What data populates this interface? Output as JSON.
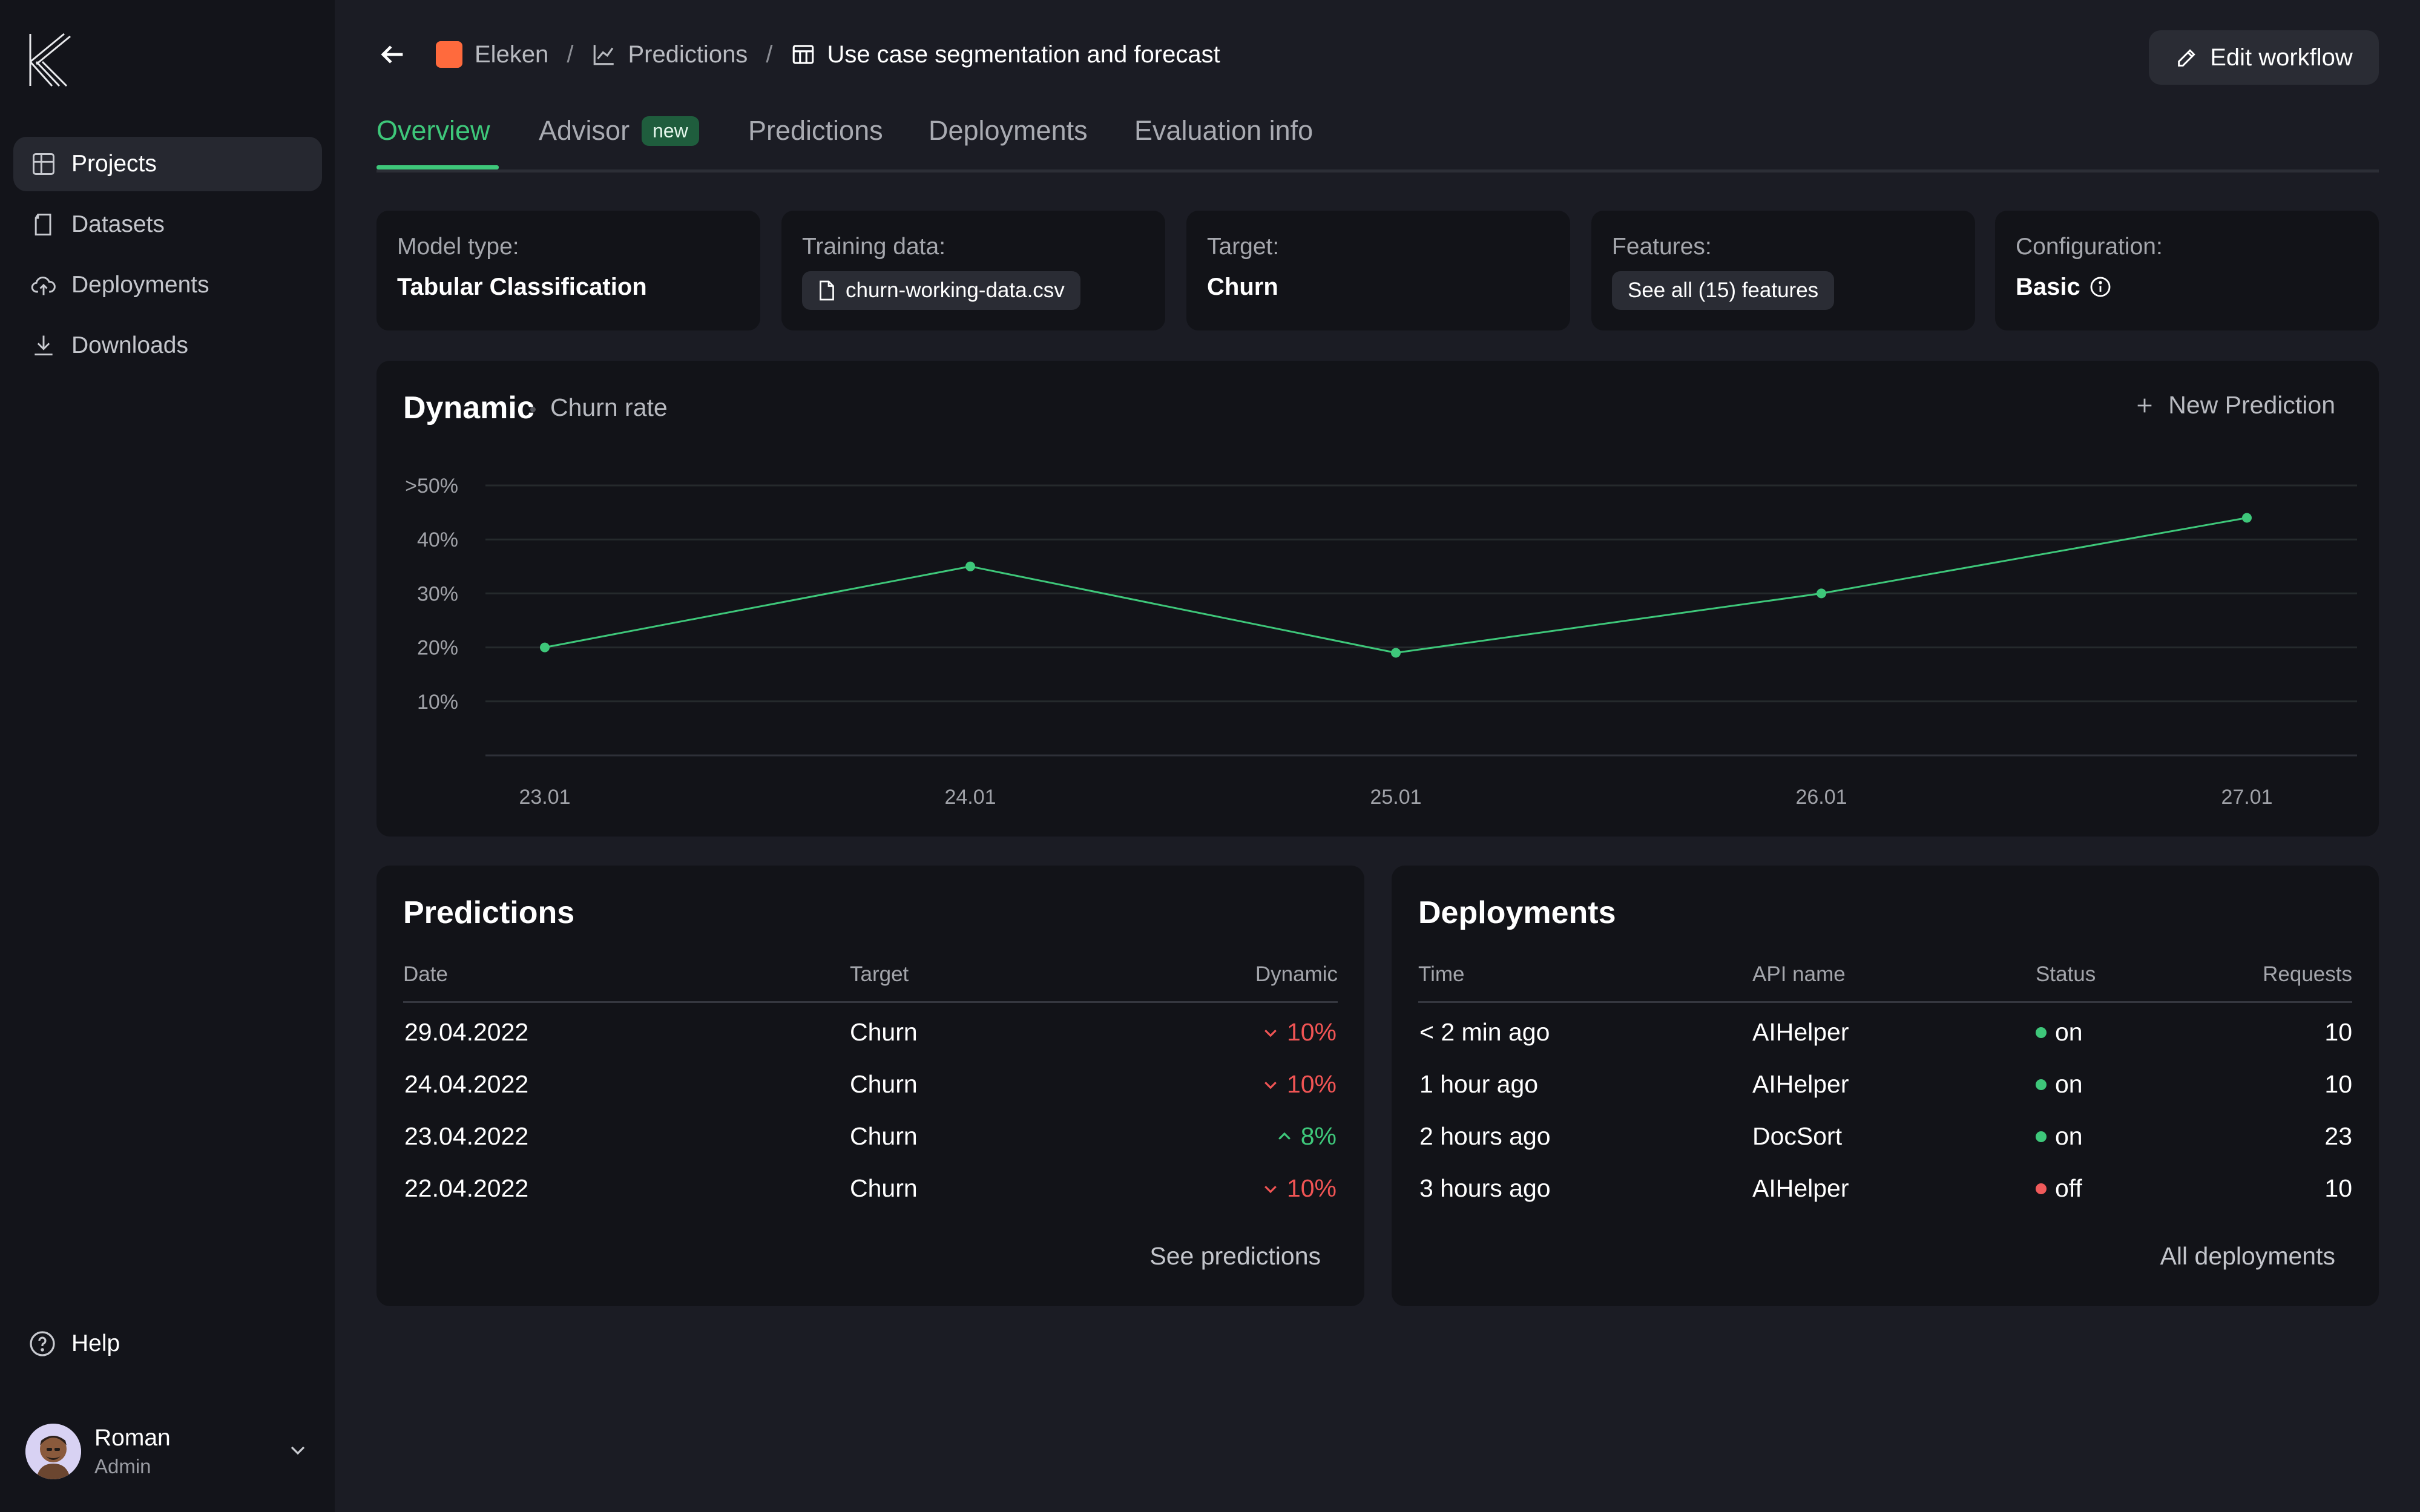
{
  "sidebar": {
    "items": [
      {
        "label": "Projects",
        "icon": "grid-icon",
        "active": true
      },
      {
        "label": "Datasets",
        "icon": "file-icon"
      },
      {
        "label": "Deployments",
        "icon": "cloud-upload-icon"
      },
      {
        "label": "Downloads",
        "icon": "download-icon"
      }
    ],
    "help_label": "Help",
    "user": {
      "name": "Roman",
      "role": "Admin"
    }
  },
  "breadcrumb": {
    "items": [
      "Eleken",
      "Predictions",
      "Use case segmentation and forecast"
    ],
    "separator": "/"
  },
  "header": {
    "edit_label": "Edit workflow"
  },
  "tabs": {
    "items": [
      "Overview",
      "Advisor",
      "Predictions",
      "Deployments",
      "Evaluation info"
    ],
    "new_badge": "new",
    "active": "Overview"
  },
  "info_cards": {
    "model": {
      "label": "Model type:",
      "value": "Tabular Classification"
    },
    "training": {
      "label": "Training data:",
      "value": "churn-working-data.csv"
    },
    "target": {
      "label": "Target:",
      "value": "Churn"
    },
    "features": {
      "label": "Features:",
      "value": "See all (15) features"
    },
    "config": {
      "label": "Configuration:",
      "value": "Basic"
    }
  },
  "chart_panel": {
    "title": "Dynamic",
    "subtitle": "Churn rate",
    "new_prediction_label": "New Prediction"
  },
  "chart_data": {
    "type": "line",
    "title": "Dynamic",
    "subtitle": "Churn rate",
    "x": [
      "23.01",
      "24.01",
      "25.01",
      "26.01",
      "27.01"
    ],
    "series": [
      {
        "values": [
          20,
          35,
          19,
          30,
          44
        ]
      }
    ],
    "ylim": [
      0,
      50
    ],
    "ytick_values": [
      10,
      20,
      30,
      40,
      50
    ],
    "ytick_labels": [
      "10%",
      "20%",
      "30%",
      "40%",
      ">50%"
    ],
    "grid": true,
    "color": "#3ec77a"
  },
  "predictions": {
    "title": "Predictions",
    "columns": [
      "Date",
      "Target",
      "Dynamic"
    ],
    "rows": [
      {
        "date": "29.04.2022",
        "target": "Churn",
        "dynamic": "10%",
        "trend": "down"
      },
      {
        "date": "24.04.2022",
        "target": "Churn",
        "dynamic": "10%",
        "trend": "down"
      },
      {
        "date": "23.04.2022",
        "target": "Churn",
        "dynamic": "8%",
        "trend": "up"
      },
      {
        "date": "22.04.2022",
        "target": "Churn",
        "dynamic": "10%",
        "trend": "down"
      }
    ],
    "link_label": "See predictions"
  },
  "deployments": {
    "title": "Deployments",
    "columns": [
      "Time",
      "API name",
      "Status",
      "Requests"
    ],
    "rows": [
      {
        "time": "< 2 min ago",
        "api": "AIHelper",
        "status": "on",
        "requests": "10"
      },
      {
        "time": "1 hour ago",
        "api": "AIHelper",
        "status": "on",
        "requests": "10"
      },
      {
        "time": "2 hours ago",
        "api": "DocSort",
        "status": "on",
        "requests": "23"
      },
      {
        "time": "3 hours ago",
        "api": "AIHelper",
        "status": "off",
        "requests": "10"
      }
    ],
    "link_label": "All deployments"
  },
  "colors": {
    "accent": "#3ec77a",
    "down": "#f05454",
    "up": "#3ec77a",
    "status_on": "#3ec77a",
    "status_off": "#f05a5a"
  }
}
